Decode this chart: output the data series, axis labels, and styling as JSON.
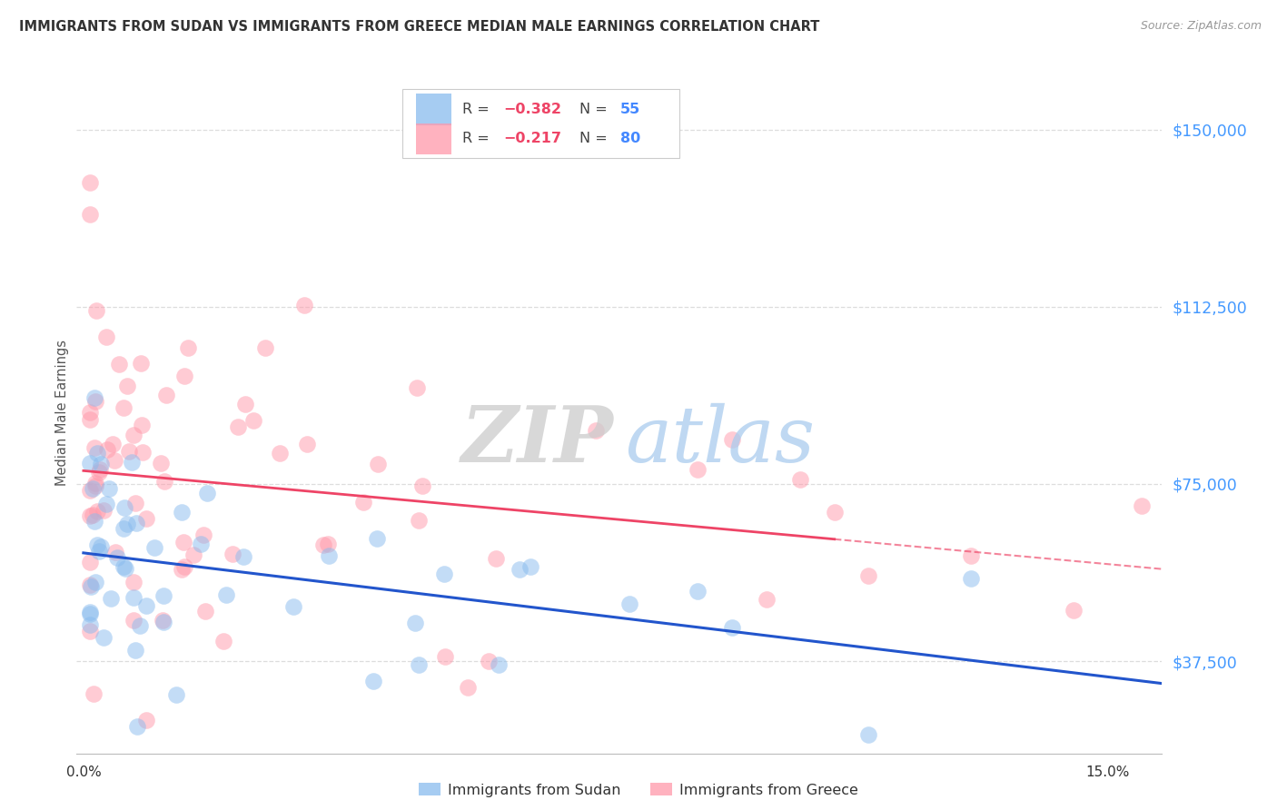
{
  "title": "IMMIGRANTS FROM SUDAN VS IMMIGRANTS FROM GREECE MEDIAN MALE EARNINGS CORRELATION CHART",
  "source": "Source: ZipAtlas.com",
  "ylabel": "Median Male Earnings",
  "ytick_labels": [
    "$37,500",
    "$75,000",
    "$112,500",
    "$150,000"
  ],
  "ytick_values": [
    37500,
    75000,
    112500,
    150000
  ],
  "ymin": 18000,
  "ymax": 162000,
  "xmin": -0.001,
  "xmax": 0.158,
  "sudan_R": -0.382,
  "sudan_N": 55,
  "greece_R": -0.217,
  "greece_N": 80,
  "sudan_color": "#88BBEE",
  "greece_color": "#FF99AA",
  "sudan_line_color": "#2255CC",
  "greece_line_color": "#EE4466",
  "watermark_zip_color": "#CCCCCC",
  "watermark_atlas_color": "#AACCEE",
  "legend_R_color": "#EE4466",
  "legend_N_color": "#4488FF",
  "legend_text_color": "#444444",
  "title_color": "#333333",
  "source_color": "#999999",
  "grid_color": "#DDDDDD",
  "axis_color": "#CCCCCC",
  "right_tick_color": "#4499FF",
  "bottom_label_color": "#333333"
}
